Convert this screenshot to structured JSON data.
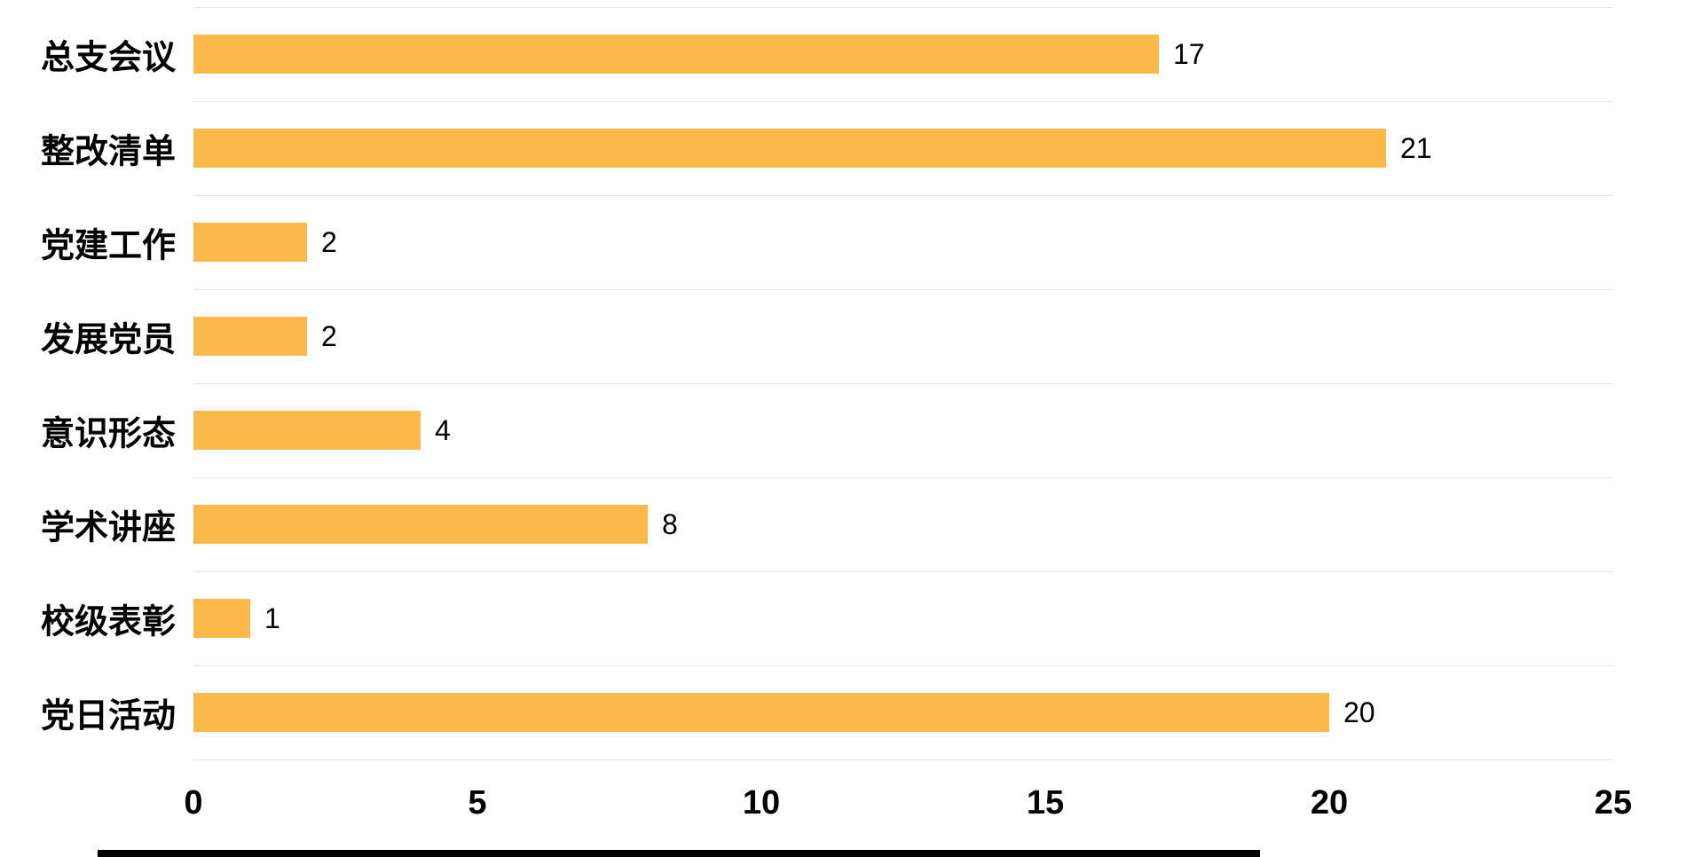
{
  "chart_data": {
    "type": "bar",
    "orientation": "horizontal",
    "title": "",
    "categories": [
      "总支会议",
      "整改清单",
      "党建工作",
      "发展党员",
      "意识形态",
      "学术讲座",
      "校级表彰",
      "党日活动"
    ],
    "values": [
      17,
      21,
      2,
      2,
      4,
      8,
      1,
      20
    ],
    "xlabel": "",
    "ylabel": "",
    "xlim": [
      0,
      25
    ],
    "x_ticks": [
      "0",
      "5",
      "10",
      "15",
      "20",
      "25"
    ],
    "bar_color": "#fbb949",
    "gridline_color": "#e6e6e6",
    "grid": true,
    "value_labels_shown": true,
    "legend": "none",
    "background_color": "#ffffff"
  }
}
